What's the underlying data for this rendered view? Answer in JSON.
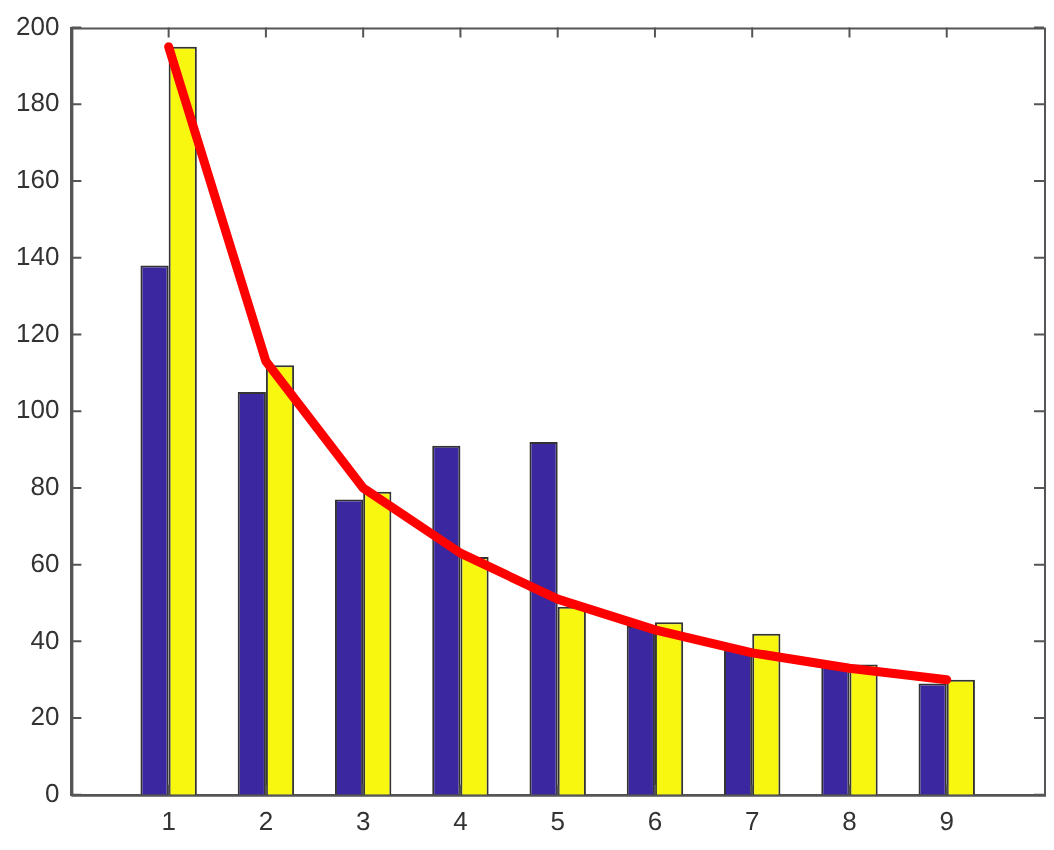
{
  "chart_data": {
    "type": "bar",
    "x": [
      1,
      2,
      3,
      4,
      5,
      6,
      7,
      8,
      9
    ],
    "series": [
      {
        "color": "#3b27a0",
        "values": [
          138,
          105,
          77,
          91,
          92,
          44,
          38,
          34,
          29
        ]
      },
      {
        "color": "#f7f710",
        "values": [
          195,
          112,
          79,
          62,
          49,
          45,
          42,
          34,
          30
        ]
      },
      {
        "type": "line",
        "color": "#ff0000",
        "values": [
          195,
          113,
          80,
          63,
          51,
          43,
          37,
          33,
          30
        ],
        "marker": "none",
        "line_style": "solid"
      }
    ],
    "xlim": [
      0,
      10
    ],
    "xticks": [
      1,
      2,
      3,
      4,
      5,
      6,
      7,
      8,
      9
    ],
    "ylim": [
      0,
      200
    ],
    "yticks": [
      0,
      20,
      40,
      60,
      80,
      100,
      120,
      140,
      160,
      180,
      200
    ],
    "grid": false,
    "legend": false
  }
}
